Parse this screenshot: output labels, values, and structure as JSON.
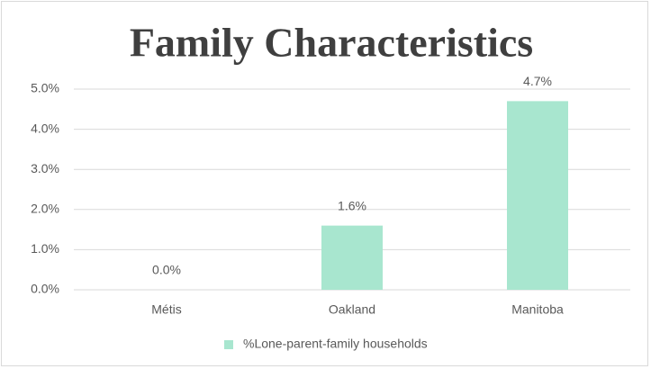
{
  "chart_data": {
    "type": "bar",
    "title": "Family Characteristics",
    "categories": [
      "Métis",
      "Oakland",
      "Manitoba"
    ],
    "series": [
      {
        "name": "%Lone-parent-family households",
        "color": "#a8e6cf",
        "values": [
          0,
          1.6,
          4.7
        ],
        "value_labels": [
          "0.0%",
          "1.6%",
          "4.7%"
        ]
      }
    ],
    "ylim": [
      0,
      5
    ],
    "yticks": [
      {
        "value": 0,
        "label": "0.0%"
      },
      {
        "value": 1,
        "label": "1.0%"
      },
      {
        "value": 2,
        "label": "2.0%"
      },
      {
        "value": 3,
        "label": "3.0%"
      },
      {
        "value": 4,
        "label": "4.0%"
      },
      {
        "value": 5,
        "label": "5.0%"
      }
    ],
    "grid": true,
    "legend": "bottom"
  }
}
